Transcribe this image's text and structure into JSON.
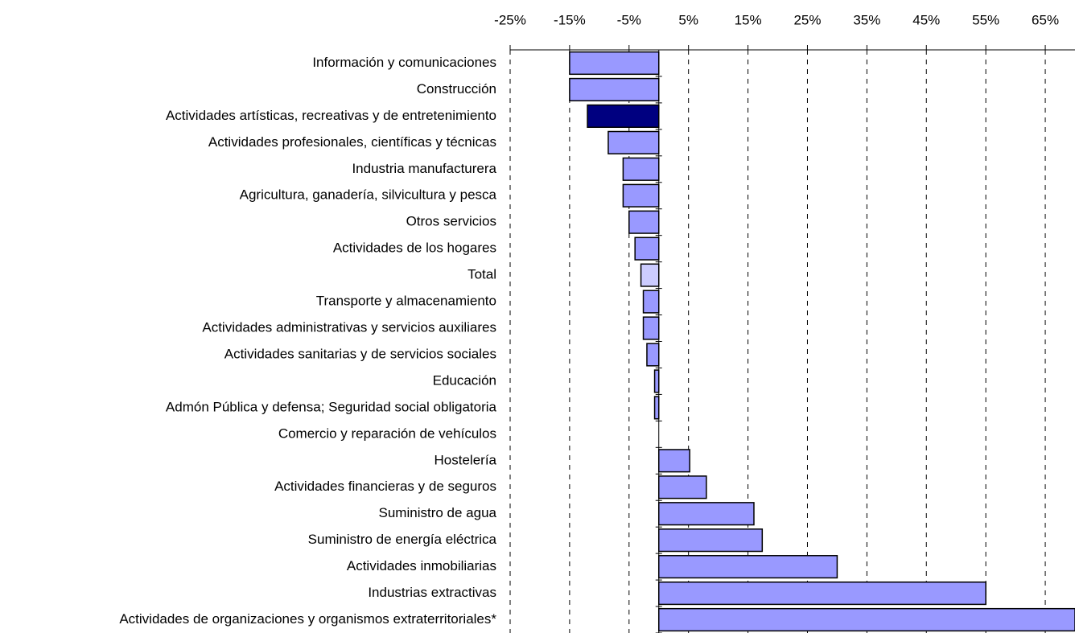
{
  "chart_data": {
    "type": "barh",
    "categories": [
      "Información y comunicaciones",
      "Construcción",
      "Actividades artísticas, recreativas y de entretenimiento",
      "Actividades profesionales, científicas y técnicas",
      "Industria manufacturera",
      "Agricultura, ganadería, silvicultura y pesca",
      "Otros servicios",
      "Actividades de los hogares",
      "Total",
      "Transporte y almacenamiento",
      "Actividades administrativas y servicios auxiliares",
      "Actividades sanitarias y de servicios sociales",
      "Educación",
      "Admón Pública y defensa; Seguridad social obligatoria",
      "Comercio y reparación de vehículos",
      "Hostelería",
      "Actividades financieras y de seguros",
      "Suministro de agua",
      "Suministro de energía eléctrica",
      "Actividades inmobiliarias",
      "Industrias extractivas",
      "Actividades de organizaciones y organismos extraterritoriales*"
    ],
    "values": [
      -15,
      -15,
      -12,
      -8.5,
      -6,
      -6,
      -5,
      -4,
      -3,
      -2.6,
      -2.6,
      -2,
      -0.7,
      -0.7,
      0,
      5.2,
      8,
      16,
      17.4,
      30,
      55,
      70
    ],
    "colors": [
      "#9999ff",
      "#9999ff",
      "#000080",
      "#9999ff",
      "#9999ff",
      "#9999ff",
      "#9999ff",
      "#9999ff",
      "#ccccff",
      "#9999ff",
      "#9999ff",
      "#9999ff",
      "#9999ff",
      "#9999ff",
      "#9999ff",
      "#9999ff",
      "#9999ff",
      "#9999ff",
      "#9999ff",
      "#9999ff",
      "#9999ff",
      "#9999ff"
    ],
    "xlim": [
      -25,
      70
    ],
    "xticks": [
      {
        "value": -25,
        "label": "-25%"
      },
      {
        "value": -15,
        "label": "-15%"
      },
      {
        "value": -5,
        "label": "-5%"
      },
      {
        "value": 5,
        "label": "5%"
      },
      {
        "value": 15,
        "label": "15%"
      },
      {
        "value": 25,
        "label": "25%"
      },
      {
        "value": 35,
        "label": "35%"
      },
      {
        "value": 45,
        "label": "45%"
      },
      {
        "value": 55,
        "label": "55%"
      },
      {
        "value": 65,
        "label": "65%"
      }
    ],
    "grid": true
  }
}
